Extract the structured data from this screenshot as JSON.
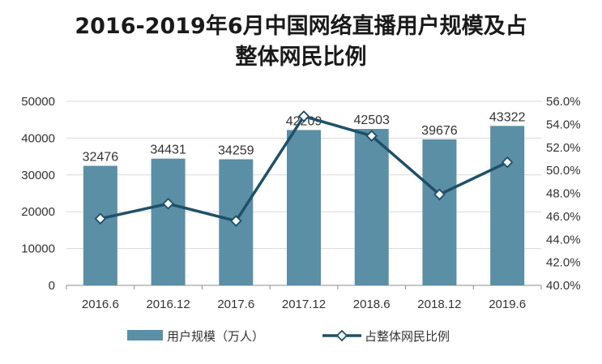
{
  "chart_data": {
    "type": "bar",
    "title_line1": "2016-2019年6月中国网络直播用户规模及占",
    "title_line2": "整体网民比例",
    "categories": [
      "2016.6",
      "2016.12",
      "2017.6",
      "2017.12",
      "2018.6",
      "2018.12",
      "2019.6"
    ],
    "series": [
      {
        "name": "用户规模（万人）",
        "type": "bar",
        "axis": "left",
        "color": "#5b8fa6",
        "values": [
          32476,
          34431,
          34259,
          42209,
          42503,
          39676,
          43322
        ]
      },
      {
        "name": "占整体网民比例",
        "type": "line",
        "axis": "right",
        "color": "#1f5068",
        "marker": "diamond",
        "values": [
          45.8,
          47.1,
          45.6,
          54.7,
          53.0,
          47.9,
          50.7
        ]
      }
    ],
    "y_left": {
      "min": 0,
      "max": 50000,
      "ticks": [
        "0",
        "10000",
        "20000",
        "30000",
        "40000",
        "50000"
      ]
    },
    "y_right": {
      "min": 40,
      "max": 56,
      "ticks": [
        "40.0%",
        "42.0%",
        "44.0%",
        "46.0%",
        "48.0%",
        "50.0%",
        "52.0%",
        "54.0%",
        "56.0%"
      ]
    },
    "grid": true,
    "legend_position": "bottom"
  }
}
